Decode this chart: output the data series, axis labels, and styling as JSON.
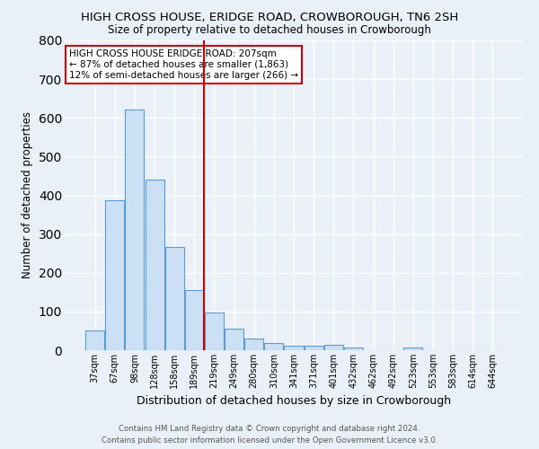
{
  "title": "HIGH CROSS HOUSE, ERIDGE ROAD, CROWBOROUGH, TN6 2SH",
  "subtitle": "Size of property relative to detached houses in Crowborough",
  "xlabel": "Distribution of detached houses by size in Crowborough",
  "ylabel": "Number of detached properties",
  "footer_line1": "Contains HM Land Registry data © Crown copyright and database right 2024.",
  "footer_line2": "Contains public sector information licensed under the Open Government Licence v3.0.",
  "bar_labels": [
    "37sqm",
    "67sqm",
    "98sqm",
    "128sqm",
    "158sqm",
    "189sqm",
    "219sqm",
    "249sqm",
    "280sqm",
    "310sqm",
    "341sqm",
    "371sqm",
    "401sqm",
    "432sqm",
    "462sqm",
    "492sqm",
    "523sqm",
    "553sqm",
    "583sqm",
    "614sqm",
    "644sqm"
  ],
  "bar_heights": [
    50,
    387,
    622,
    440,
    267,
    155,
    98,
    55,
    30,
    18,
    11,
    12,
    13,
    7,
    0,
    0,
    8,
    0,
    0,
    0,
    0
  ],
  "bar_color": "#cce0f5",
  "bar_edge_color": "#5b9bd5",
  "bg_color": "#eaf0f8",
  "grid_color": "#ffffff",
  "vline_color": "#cc0000",
  "annotation_text": "HIGH CROSS HOUSE ERIDGE ROAD: 207sqm\n← 87% of detached houses are smaller (1,863)\n12% of semi-detached houses are larger (266) →",
  "annotation_box_color": "#ffffff",
  "annotation_box_edge": "#cc0000",
  "ylim": [
    0,
    800
  ],
  "yticks": [
    0,
    100,
    200,
    300,
    400,
    500,
    600,
    700,
    800
  ]
}
